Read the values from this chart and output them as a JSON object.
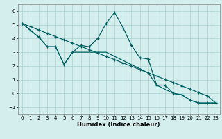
{
  "xlabel": "Humidex (Indice chaleur)",
  "background_color": "#d4eeee",
  "grid_color": "#aad0d0",
  "line_color": "#006060",
  "xlim": [
    -0.5,
    23.5
  ],
  "ylim": [
    -1.5,
    6.5
  ],
  "yticks": [
    -1,
    0,
    1,
    2,
    3,
    4,
    5,
    6
  ],
  "xticks": [
    0,
    1,
    2,
    3,
    4,
    5,
    6,
    7,
    8,
    9,
    10,
    11,
    12,
    13,
    14,
    15,
    16,
    17,
    18,
    19,
    20,
    21,
    22,
    23
  ],
  "line1_x": [
    0,
    1,
    2,
    3,
    4,
    5,
    6,
    7,
    8,
    9,
    10,
    11,
    12,
    13,
    14,
    15,
    16,
    17,
    18,
    19,
    20,
    21,
    22,
    23
  ],
  "line1_y": [
    5.1,
    4.6,
    4.1,
    3.4,
    3.4,
    2.1,
    3.0,
    3.5,
    3.4,
    4.0,
    5.1,
    5.9,
    4.8,
    3.5,
    2.6,
    2.5,
    0.6,
    0.6,
    0.0,
    -0.1,
    -0.5,
    -0.7,
    -0.7,
    -0.7
  ],
  "line2_x": [
    0,
    1,
    2,
    3,
    4,
    5,
    6,
    7,
    8,
    9,
    10,
    11,
    12,
    13,
    14,
    15,
    16,
    17,
    18,
    19,
    20,
    21,
    22,
    23
  ],
  "line2_y": [
    5.1,
    4.86,
    4.62,
    4.38,
    4.14,
    3.9,
    3.66,
    3.42,
    3.18,
    2.94,
    2.7,
    2.46,
    2.22,
    1.98,
    1.74,
    1.5,
    1.26,
    1.02,
    0.78,
    0.54,
    0.3,
    0.06,
    -0.18,
    -0.7
  ],
  "line3_x": [
    0,
    2,
    3,
    4,
    5,
    6,
    10,
    15,
    16,
    17,
    18,
    19,
    20,
    21,
    22,
    23
  ],
  "line3_y": [
    5.1,
    4.1,
    3.4,
    3.4,
    2.1,
    3.0,
    3.0,
    1.5,
    0.6,
    0.3,
    0.0,
    -0.1,
    -0.5,
    -0.7,
    -0.7,
    -0.7
  ]
}
